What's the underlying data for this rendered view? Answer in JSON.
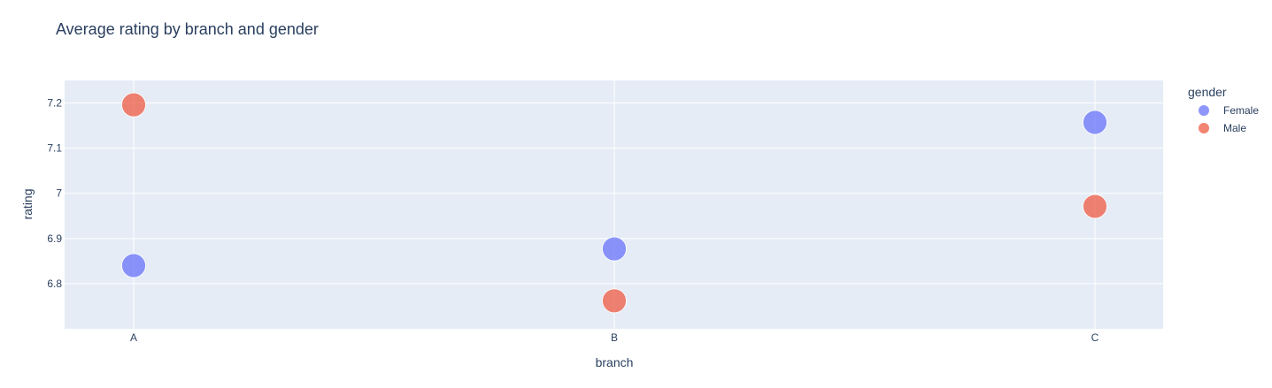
{
  "chart_data": {
    "type": "scatter",
    "title": "Average rating by branch and gender",
    "xlabel": "branch",
    "ylabel": "rating",
    "categories": [
      "A",
      "B",
      "C"
    ],
    "ylim": [
      6.7,
      7.25
    ],
    "yticks": [
      6.8,
      6.9,
      7.0,
      7.1,
      7.2
    ],
    "ytick_labels": [
      "6.8",
      "6.9",
      "7",
      "7.1",
      "7.2"
    ],
    "grid": true,
    "legend_title": "gender",
    "legend_position": "right",
    "series": [
      {
        "name": "Female",
        "color": "#636efa",
        "values": [
          6.84,
          6.877,
          7.157
        ]
      },
      {
        "name": "Male",
        "color": "#ef553b",
        "values": [
          7.196,
          6.762,
          6.971
        ]
      }
    ],
    "colors": {
      "plot_bg": "#e5ecf6",
      "grid": "#ffffff",
      "text": "#2a3f5f"
    }
  }
}
